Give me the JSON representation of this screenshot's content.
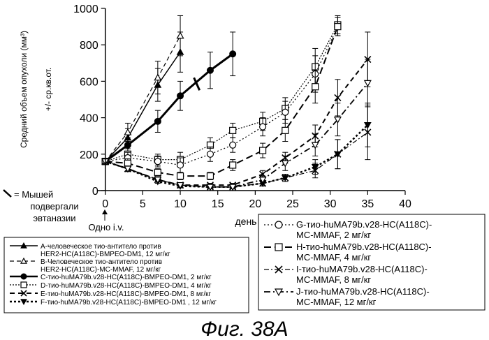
{
  "chart_data": {
    "type": "line",
    "title": "",
    "xlabel": "день",
    "ylabel_line1": "Средний объем опухоли  (мм³)",
    "ylabel_line2": "+/- ср.кв.от.",
    "xlim": [
      -1,
      40
    ],
    "ylim": [
      0,
      1000
    ],
    "x_ticks": [
      "0",
      "5",
      "10",
      "15",
      "20",
      "25",
      "30",
      "35",
      "40"
    ],
    "y_ticks": [
      "0",
      "200",
      "400",
      "600",
      "800",
      "1000"
    ],
    "grid": false,
    "dosing_note": "Одно i.v.",
    "euthanasia_note": [
      "= Мышей",
      "подвергали",
      "эвтаназии"
    ],
    "caption": "Фиг. 38А",
    "series": [
      {
        "key": "A",
        "marker": "triangle-filled",
        "dash": "",
        "width": 1.5,
        "name_lines": [
          "A-человеческое тио-антитело против",
          "HER2-HC(A118C)-BMPEO-DM1, 12 мг/кг"
        ],
        "x": [
          0,
          3,
          7,
          10
        ],
        "y": [
          160,
          290,
          580,
          760
        ],
        "err": [
          15,
          50,
          90,
          110
        ]
      },
      {
        "key": "B",
        "marker": "triangle-open",
        "dash": "6,4",
        "width": 1.2,
        "name_lines": [
          "B-Человеческое тио-антитело против",
          "HER2-HC(A118C)-MC-MMAF, 12 мг/кг"
        ],
        "x": [
          0,
          3,
          7,
          10
        ],
        "y": [
          160,
          320,
          620,
          850
        ],
        "err": [
          15,
          50,
          90,
          110
        ]
      },
      {
        "key": "C",
        "marker": "circle-filled",
        "dash": "",
        "width": 3,
        "name_lines": [
          "C-тио-huMA79b.v28-HC(A118C)-BMPEO-DM1, 2 мг/кг"
        ],
        "x": [
          0,
          3,
          7,
          10,
          14,
          17
        ],
        "y": [
          160,
          250,
          380,
          520,
          660,
          750
        ],
        "err": [
          15,
          40,
          60,
          80,
          100,
          120
        ]
      },
      {
        "key": "D",
        "marker": "square-open",
        "dash": "2,2",
        "width": 1.2,
        "name_lines": [
          "D-тио-huMA79b.v28-HC(A118C)-BMPEO-DM1, 4 мг/кг"
        ],
        "x": [
          0,
          3,
          7,
          10,
          14,
          17,
          21,
          24,
          28,
          31
        ],
        "y": [
          160,
          200,
          170,
          170,
          250,
          330,
          380,
          450,
          680,
          910
        ],
        "err": [
          15,
          30,
          30,
          40,
          40,
          40,
          50,
          60,
          100,
          50
        ]
      },
      {
        "key": "E",
        "marker": "x",
        "dash": "7,5",
        "width": 2,
        "name_lines": [
          "E-тио-huMA79b.v28-HC(A118C)-BMPEO-DM1, 8 мг/кг"
        ],
        "x": [
          0,
          3,
          7,
          10,
          14,
          17,
          21,
          24,
          28,
          31,
          35
        ],
        "y": [
          160,
          120,
          60,
          30,
          30,
          30,
          90,
          180,
          300,
          510,
          720
        ],
        "err": [
          15,
          15,
          10,
          10,
          10,
          10,
          20,
          30,
          60,
          100,
          150
        ]
      },
      {
        "key": "F",
        "marker": "triangle-down-filled",
        "dash": "3,3",
        "width": 2.5,
        "name_lines": [
          "F-тио-huMA79b.v28-HC(A118C)-BMPEO-DM1   , 12 мг/кг"
        ],
        "x": [
          0,
          3,
          7,
          10,
          14,
          17,
          21,
          24,
          28,
          31,
          35
        ],
        "y": [
          160,
          120,
          50,
          25,
          20,
          20,
          40,
          70,
          130,
          200,
          360
        ],
        "err": [
          15,
          15,
          10,
          10,
          10,
          10,
          15,
          20,
          40,
          80,
          120
        ]
      },
      {
        "key": "G",
        "marker": "circle-open",
        "dash": "2,3",
        "width": 1.2,
        "name_lines": [
          "G-тио-huMA79b.v28-HC(A118C)-",
          "MC-MMAF, 2 мг/кг"
        ],
        "x": [
          0,
          3,
          7,
          10,
          14,
          17,
          21,
          24,
          28,
          31
        ],
        "y": [
          160,
          180,
          160,
          140,
          200,
          250,
          350,
          430,
          640,
          900
        ],
        "err": [
          15,
          30,
          30,
          40,
          40,
          40,
          50,
          60,
          100,
          50
        ]
      },
      {
        "key": "H",
        "marker": "square-open",
        "dash": "10,5",
        "width": 2,
        "name_lines": [
          "H-тио-huMA79b.v28-HC(A118C)-",
          "MC-MMAF, 4 мг/кг"
        ],
        "x": [
          0,
          3,
          7,
          10,
          14,
          17,
          21,
          24,
          28,
          31
        ],
        "y": [
          160,
          150,
          100,
          80,
          80,
          140,
          220,
          330,
          570,
          900
        ],
        "err": [
          15,
          25,
          20,
          20,
          20,
          30,
          40,
          60,
          90,
          50
        ]
      },
      {
        "key": "I",
        "marker": "x",
        "dash": "7,3,2,3",
        "width": 1.2,
        "name_lines": [
          "I-тио-huMA79b.v28-HC(A118C)-",
          "MC-MMAF, 8 мг/кг"
        ],
        "x": [
          0,
          3,
          7,
          10,
          14,
          17,
          21,
          24,
          28,
          31,
          35
        ],
        "y": [
          160,
          120,
          60,
          30,
          20,
          20,
          40,
          70,
          110,
          200,
          320
        ],
        "err": [
          15,
          15,
          10,
          10,
          10,
          10,
          15,
          20,
          40,
          80,
          150
        ]
      },
      {
        "key": "J",
        "marker": "triangle-down-open",
        "dash": "9,4,2,4",
        "width": 1.8,
        "name_lines": [
          "J-тио-huMA79b.v28-HC(A118C)-",
          "MC-MMAF, 12 мг/кг"
        ],
        "x": [
          0,
          3,
          7,
          10,
          14,
          17,
          21,
          24,
          28,
          31,
          35
        ],
        "y": [
          160,
          120,
          60,
          30,
          20,
          20,
          60,
          150,
          250,
          390,
          590
        ],
        "err": [
          15,
          15,
          10,
          10,
          10,
          10,
          20,
          40,
          60,
          90,
          130
        ]
      }
    ]
  }
}
